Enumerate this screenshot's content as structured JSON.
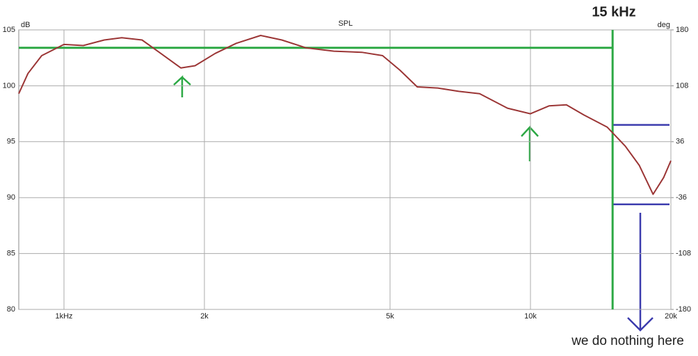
{
  "chart_data": {
    "type": "line",
    "title": "SPL",
    "ylabel": "dB",
    "y2label": "deg",
    "xscale": "log",
    "xlim": [
      800,
      20000
    ],
    "xticks": [
      {
        "value": 1000,
        "label": "1kHz"
      },
      {
        "value": 2000,
        "label": "2k"
      },
      {
        "value": 5000,
        "label": "5k"
      },
      {
        "value": 10000,
        "label": "10k"
      },
      {
        "value": 20000,
        "label": "20k"
      }
    ],
    "ylim": [
      80,
      105
    ],
    "yticks": [
      80,
      85,
      90,
      95,
      100,
      105
    ],
    "y2lim": [
      -180,
      180
    ],
    "y2ticks": [
      -180,
      -108,
      -36,
      36,
      108,
      180
    ],
    "grid": true,
    "x": [
      800,
      837,
      896,
      1000,
      1100,
      1220,
      1330,
      1470,
      1600,
      1780,
      1910,
      2110,
      2340,
      2640,
      2930,
      3300,
      3790,
      4350,
      4820,
      5250,
      5720,
      6330,
      7020,
      7780,
      8930,
      10000,
      10960,
      11940,
      13010,
      14610,
      15970,
      17100,
      18320,
      19300,
      20000
    ],
    "series": [
      {
        "color": "#9b3535",
        "values": [
          99.3,
          101.1,
          102.7,
          103.7,
          103.6,
          104.1,
          104.3,
          104.1,
          103.0,
          101.6,
          101.8,
          102.9,
          103.8,
          104.5,
          104.1,
          103.4,
          103.1,
          103.0,
          102.7,
          101.4,
          99.9,
          99.8,
          99.5,
          99.3,
          98.0,
          97.5,
          98.2,
          98.3,
          97.4,
          96.3,
          94.6,
          92.9,
          90.3,
          91.8,
          93.3
        ]
      }
    ],
    "vline": {
      "x": 15000,
      "label": "15 kHz",
      "color": "#2ca844"
    },
    "hline": {
      "y": 103.4,
      "color": "#2ca844"
    },
    "range_lines": {
      "values": [
        96.5,
        89.4
      ],
      "x_from": 15060,
      "color": "#3b3bad"
    },
    "note": "we do nothing here"
  }
}
